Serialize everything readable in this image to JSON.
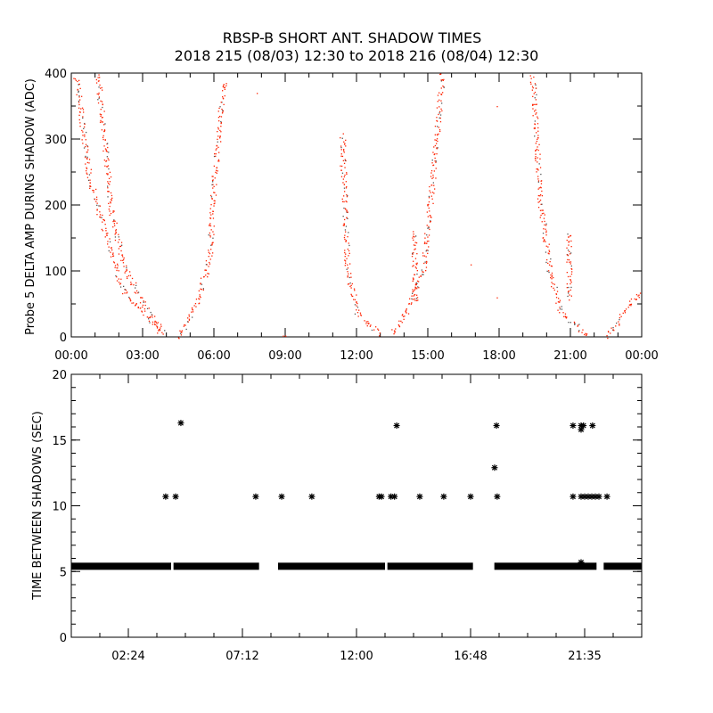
{
  "chart_data": [
    {
      "type": "scatter",
      "title": "RBSP-B SHORT ANT. SHADOW TIMES",
      "subtitle": "2018 215 (08/03) 12:30 to 2018 216 (08/04) 12:30",
      "xlabel": "",
      "ylabel": "Probe 5 DELTA AMP DURING SHADOW (ADC)",
      "xlim_hours": [
        0,
        24
      ],
      "ylim": [
        0,
        400
      ],
      "x_ticks": [
        {
          "h": 0,
          "label": "00:00"
        },
        {
          "h": 3,
          "label": "03:00"
        },
        {
          "h": 6,
          "label": "06:00"
        },
        {
          "h": 9,
          "label": "09:00"
        },
        {
          "h": 12,
          "label": "12:00"
        },
        {
          "h": 15,
          "label": "15:00"
        },
        {
          "h": 18,
          "label": "18:00"
        },
        {
          "h": 21,
          "label": "21:00"
        },
        {
          "h": 24,
          "label": "00:00"
        }
      ],
      "y_ticks": [
        0,
        100,
        200,
        300,
        400
      ],
      "color": "#ff2200",
      "traces": [
        [
          [
            0.2,
            396
          ],
          [
            0.75,
            240
          ],
          [
            1.5,
            146
          ],
          [
            2.25,
            65
          ],
          [
            3,
            38
          ],
          [
            3.75,
            8
          ]
        ],
        [
          [
            1.1,
            400
          ],
          [
            1.7,
            186
          ],
          [
            2.25,
            105
          ],
          [
            3,
            51
          ],
          [
            3.9,
            4
          ]
        ],
        [
          [
            4.5,
            0
          ],
          [
            5.25,
            51
          ],
          [
            5.8,
            119
          ],
          [
            6,
            240
          ],
          [
            6.4,
            390
          ]
        ],
        [
          [
            11.4,
            308
          ],
          [
            11.6,
            105
          ],
          [
            12,
            38
          ],
          [
            13,
            4
          ]
        ],
        [
          [
            13.5,
            4
          ],
          [
            14.25,
            51
          ],
          [
            14.8,
            105
          ],
          [
            15.2,
            240
          ],
          [
            15.6,
            400
          ]
        ],
        [
          [
            14.4,
            160
          ],
          [
            14.45,
            50
          ]
        ],
        [
          [
            19.4,
            396
          ],
          [
            19.7,
            213
          ],
          [
            20.1,
            105
          ],
          [
            20.6,
            38
          ],
          [
            21.75,
            0
          ]
        ],
        [
          [
            20.9,
            160
          ],
          [
            20.95,
            55
          ]
        ],
        [
          [
            22.5,
            0
          ],
          [
            23.25,
            38
          ],
          [
            24,
            72
          ]
        ]
      ],
      "isolated_points": [
        [
          7.8,
          370
        ],
        [
          8.9,
          2
        ],
        [
          9.0,
          2
        ],
        [
          11.3,
          260
        ],
        [
          16.8,
          110
        ],
        [
          17.9,
          60
        ],
        [
          17.9,
          350
        ]
      ]
    },
    {
      "type": "scatter",
      "ylabel": "TIME BETWEEN SHADOWS (SEC)",
      "xlim_hours": [
        0,
        24
      ],
      "ylim": [
        0,
        20
      ],
      "x_ticks": [
        {
          "h": 2.4,
          "label": "02:24"
        },
        {
          "h": 7.2,
          "label": "07:12"
        },
        {
          "h": 12,
          "label": "12:00"
        },
        {
          "h": 16.8,
          "label": "16:48"
        },
        {
          "h": 21.6,
          "label": "21:35"
        }
      ],
      "y_ticks": [
        0,
        5,
        10,
        15,
        20
      ],
      "baseline_value": 5.4,
      "baseline_segments": [
        [
          0,
          4.2
        ],
        [
          4.3,
          7.9
        ],
        [
          8.7,
          13.2
        ],
        [
          13.3,
          16.9
        ],
        [
          17.8,
          22.1
        ],
        [
          22.4,
          24
        ]
      ],
      "points": [
        [
          3.97,
          10.7
        ],
        [
          4.39,
          10.7
        ],
        [
          4.61,
          16.3
        ],
        [
          7.76,
          10.7
        ],
        [
          8.85,
          10.7
        ],
        [
          10.12,
          10.7
        ],
        [
          12.95,
          10.7
        ],
        [
          13.05,
          10.7
        ],
        [
          13.45,
          10.7
        ],
        [
          13.6,
          10.7
        ],
        [
          13.69,
          16.1
        ],
        [
          14.66,
          10.7
        ],
        [
          15.67,
          10.7
        ],
        [
          16.8,
          10.7
        ],
        [
          17.81,
          12.9
        ],
        [
          17.89,
          16.1
        ],
        [
          17.92,
          10.7
        ],
        [
          21.11,
          16.1
        ],
        [
          21.11,
          10.7
        ],
        [
          21.45,
          16.1
        ],
        [
          21.45,
          15.8
        ],
        [
          21.55,
          16.1
        ],
        [
          21.93,
          16.1
        ],
        [
          21.45,
          10.7
        ],
        [
          21.6,
          10.7
        ],
        [
          21.75,
          10.7
        ],
        [
          21.9,
          10.7
        ],
        [
          22.05,
          10.7
        ],
        [
          22.2,
          10.7
        ],
        [
          22.54,
          10.7
        ],
        [
          21.45,
          5.7
        ]
      ]
    }
  ]
}
